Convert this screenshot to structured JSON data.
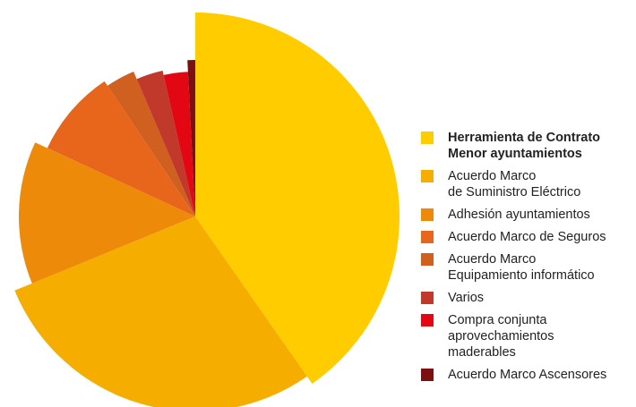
{
  "chart_data": {
    "type": "pie",
    "series": [
      {
        "name": "Herramienta de Contrato\nMenor ayuntamientos",
        "color": "#FFCC00",
        "values": [
          40.3
        ]
      },
      {
        "name": "Acuerdo Marco\nde Suministro Eléctrico",
        "color": "#F5AE00",
        "values": [
          28.5
        ]
      },
      {
        "name": "Adhesión ayuntamientos",
        "color": "#EE8A0A",
        "values": [
          13.1
        ]
      },
      {
        "name": "Acuerdo Marco de Seguros",
        "color": "#E8661B",
        "values": [
          8.7
        ]
      },
      {
        "name": "Acuerdo Marco\nEquipamiento informático",
        "color": "#D0601F",
        "values": [
          3.0
        ]
      },
      {
        "name": "Varios",
        "color": "#C0392B",
        "values": [
          2.9
        ]
      },
      {
        "name": "Compra conjunta\naprovechamientos\nmaderables",
        "color": "#E30613",
        "values": [
          2.7
        ]
      },
      {
        "name": "Acuerdo Marco Ascensores",
        "color": "#7A1010",
        "values": [
          0.8
        ]
      }
    ]
  }
}
